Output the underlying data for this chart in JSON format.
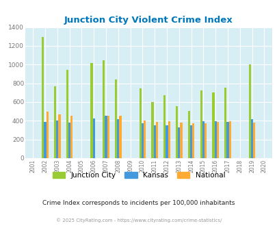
{
  "title": "Junction City Violent Crime Index",
  "years": [
    2001,
    2002,
    2003,
    2004,
    2005,
    2006,
    2007,
    2008,
    2009,
    2010,
    2011,
    2012,
    2013,
    2014,
    2015,
    2016,
    2017,
    2018,
    2019,
    2020
  ],
  "junction_city": [
    null,
    1295,
    770,
    945,
    null,
    1015,
    1048,
    840,
    null,
    748,
    598,
    675,
    558,
    507,
    722,
    705,
    750,
    null,
    1003,
    null
  ],
  "kansas": [
    null,
    385,
    400,
    383,
    null,
    425,
    452,
    418,
    null,
    372,
    353,
    352,
    328,
    352,
    395,
    396,
    385,
    null,
    415,
    null
  ],
  "national": [
    null,
    495,
    470,
    457,
    null,
    null,
    457,
    452,
    null,
    403,
    387,
    394,
    383,
    373,
    373,
    386,
    394,
    null,
    381,
    null
  ],
  "junction_city_color": "#99cc33",
  "kansas_color": "#4499dd",
  "national_color": "#ffaa33",
  "bg_color": "#d8eef5",
  "title_color": "#0077bb",
  "ylabel_max": 1400,
  "yticks": [
    0,
    200,
    400,
    600,
    800,
    1000,
    1200,
    1400
  ],
  "subtitle": "Crime Index corresponds to incidents per 100,000 inhabitants",
  "footer": "© 2025 CityRating.com - https://www.cityrating.com/crime-statistics/",
  "bar_width": 0.18,
  "bar_gap": 0.0
}
